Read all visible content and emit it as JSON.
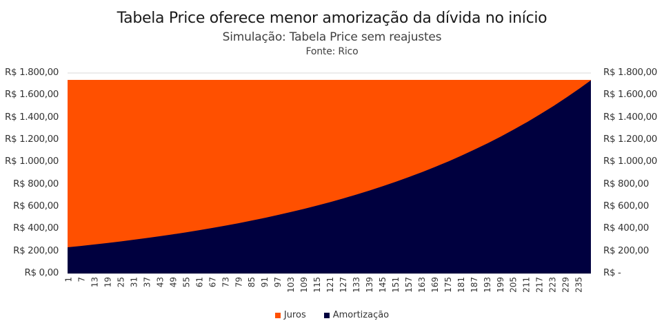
{
  "titles": {
    "title": "Tabela Price oferece menor amorização da dívida no início",
    "subtitle": "Simulação: Tabela Price sem reajustes",
    "source": "Fonte: Rico"
  },
  "colors": {
    "juros": "#FF5000",
    "amortizacao": "#00003F",
    "grid": "#D9D9D9"
  },
  "axes": {
    "left_ticks": [
      "R$ 0,00",
      "R$ 200,00",
      "R$ 400,00",
      "R$ 600,00",
      "R$ 800,00",
      "R$ 1.000,00",
      "R$ 1.200,00",
      "R$ 1.400,00",
      "R$ 1.600,00",
      "R$ 1.800,00"
    ],
    "right_ticks": [
      "R$ -",
      "R$ 200,00",
      "R$ 400,00",
      "R$ 600,00",
      "R$ 800,00",
      "R$ 1.000,00",
      "R$ 1.200,00",
      "R$ 1.400,00",
      "R$ 1.600,00",
      "R$ 1.800,00"
    ]
  },
  "legend": {
    "juros": "Juros",
    "amortizacao": "Amortização"
  },
  "chart_data": {
    "type": "area",
    "stacked": true,
    "title": "Tabela Price oferece menor amorização da dívida no início",
    "subtitle": "Simulação: Tabela Price sem reajustes",
    "source": "Fonte: Rico",
    "xlabel": "",
    "ylabel": "",
    "ylim": [
      0,
      1800
    ],
    "y_tick_step": 200,
    "secondary_y_axis": true,
    "grid": "top gridline only",
    "legend_position": "bottom",
    "x_range": [
      1,
      240
    ],
    "x": [
      1,
      7,
      13,
      19,
      25,
      31,
      37,
      43,
      49,
      55,
      61,
      67,
      73,
      79,
      85,
      91,
      97,
      103,
      109,
      115,
      121,
      127,
      133,
      139,
      145,
      151,
      157,
      163,
      169,
      175,
      181,
      187,
      193,
      199,
      205,
      211,
      217,
      223,
      229,
      235,
      240
    ],
    "x_tick_labels": [
      "1",
      "7",
      "13",
      "19",
      "25",
      "31",
      "37",
      "43",
      "49",
      "55",
      "61",
      "67",
      "73",
      "79",
      "85",
      "91",
      "97",
      "103",
      "109",
      "115",
      "121",
      "127",
      "133",
      "139",
      "145",
      "151",
      "157",
      "163",
      "169",
      "175",
      "181",
      "187",
      "193",
      "199",
      "205",
      "211",
      "217",
      "223",
      "229",
      "235"
    ],
    "series": [
      {
        "name": "Amortização",
        "color": "#00003F",
        "values": [
          235,
          247,
          260,
          273,
          287,
          302,
          318,
          334,
          351,
          369,
          388,
          408,
          429,
          451,
          475,
          499,
          525,
          552,
          580,
          610,
          641,
          674,
          709,
          745,
          784,
          824,
          867,
          911,
          958,
          1007,
          1059,
          1114,
          1171,
          1231,
          1295,
          1361,
          1432,
          1505,
          1583,
          1664,
          1735
        ]
      },
      {
        "name": "Juros",
        "color": "#FF5000",
        "values": [
          1503,
          1491,
          1478,
          1465,
          1451,
          1436,
          1420,
          1404,
          1387,
          1369,
          1350,
          1330,
          1309,
          1287,
          1263,
          1239,
          1213,
          1186,
          1158,
          1128,
          1097,
          1064,
          1029,
          993,
          954,
          914,
          871,
          827,
          780,
          731,
          679,
          624,
          567,
          507,
          443,
          377,
          306,
          233,
          155,
          74,
          3
        ]
      }
    ]
  }
}
